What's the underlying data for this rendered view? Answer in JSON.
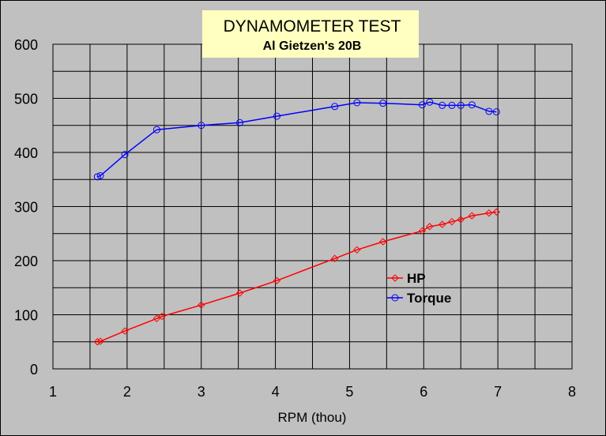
{
  "chart_data": {
    "type": "line",
    "title": "DYNAMOMETER TEST",
    "subtitle": "Al Gietzen's 20B",
    "xlabel": "RPM (thou)",
    "ylabel": "",
    "xlim": [
      1,
      8
    ],
    "ylim": [
      0,
      600
    ],
    "x_ticks": [
      "1",
      "2",
      "3",
      "4",
      "5",
      "6",
      "7",
      "8"
    ],
    "y_ticks": [
      "0",
      "100",
      "200",
      "300",
      "400",
      "500",
      "600"
    ],
    "grid": true,
    "legend_position": "right-middle",
    "series": [
      {
        "name": "HP",
        "color": "#ff0000",
        "marker": "diamond",
        "points": [
          [
            1.6,
            50
          ],
          [
            1.64,
            51
          ],
          [
            1.97,
            70
          ],
          [
            2.4,
            93
          ],
          [
            2.47,
            97
          ],
          [
            3.0,
            118
          ],
          [
            3.52,
            140
          ],
          [
            4.02,
            163
          ],
          [
            4.8,
            204
          ],
          [
            5.1,
            220
          ],
          [
            5.45,
            235
          ],
          [
            5.98,
            255
          ],
          [
            6.08,
            263
          ],
          [
            6.25,
            267
          ],
          [
            6.38,
            272
          ],
          [
            6.5,
            276
          ],
          [
            6.65,
            283
          ],
          [
            6.88,
            288
          ],
          [
            6.98,
            290
          ]
        ]
      },
      {
        "name": "Torque",
        "color": "#0000ff",
        "marker": "circle",
        "points": [
          [
            1.6,
            355
          ],
          [
            1.64,
            357
          ],
          [
            1.97,
            396
          ],
          [
            2.4,
            442
          ],
          [
            3.0,
            450
          ],
          [
            3.52,
            455
          ],
          [
            4.02,
            467
          ],
          [
            4.8,
            485
          ],
          [
            5.1,
            492
          ],
          [
            5.45,
            491
          ],
          [
            5.98,
            488
          ],
          [
            6.08,
            493
          ],
          [
            6.25,
            487
          ],
          [
            6.38,
            487
          ],
          [
            6.5,
            487
          ],
          [
            6.65,
            488
          ],
          [
            6.88,
            476
          ],
          [
            6.98,
            475
          ]
        ]
      }
    ]
  }
}
